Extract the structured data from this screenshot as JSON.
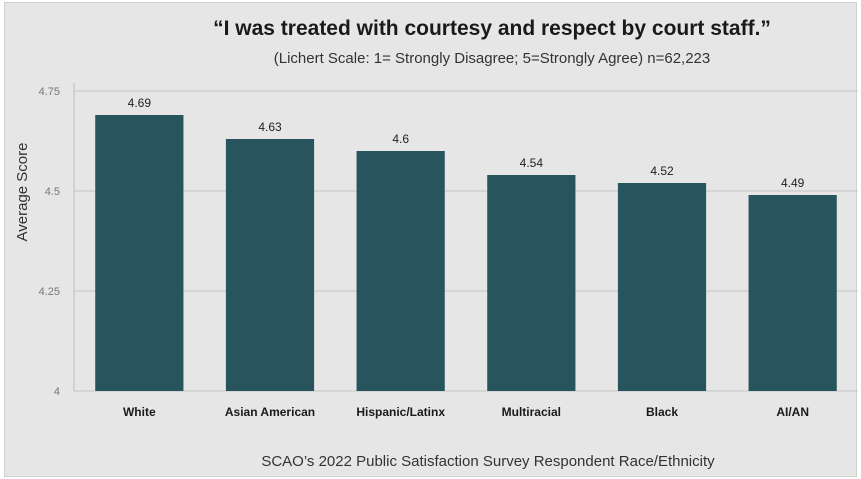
{
  "chart_data": {
    "type": "bar",
    "title": "“I was treated with courtesy and respect by court staff.”",
    "subtitle": "(Lichert Scale: 1= Strongly Disagree; 5=Strongly Agree) n=62,223",
    "xlabel": "SCAO’s 2022 Public Satisfaction Survey Respondent Race/Ethnicity",
    "ylabel": "Average Score",
    "categories": [
      "White",
      "Asian American",
      "Hispanic/Latinx",
      "Multiracial",
      "Black",
      "AI/AN"
    ],
    "values": [
      4.69,
      4.63,
      4.6,
      4.54,
      4.52,
      4.49
    ],
    "value_labels": [
      "4.69",
      "4.63",
      "4.6",
      "4.54",
      "4.52",
      "4.49"
    ],
    "ylim": [
      4,
      4.75
    ],
    "yticks": [
      "4",
      "4.25",
      "4.5",
      "4.75"
    ],
    "grid": true,
    "bar_color": "#27545d"
  }
}
